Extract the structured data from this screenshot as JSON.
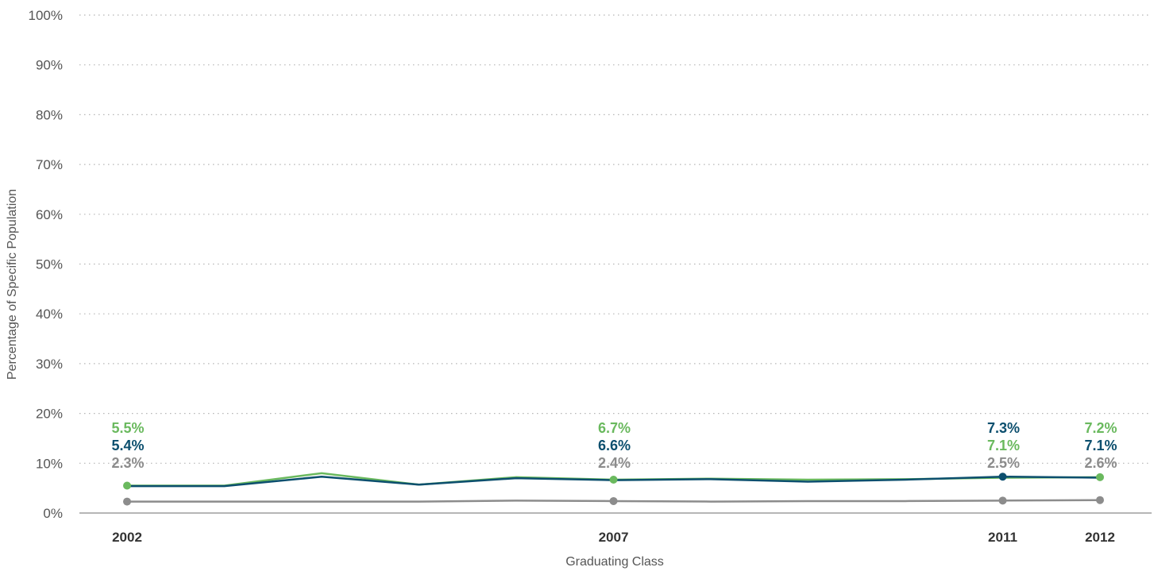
{
  "chart_data": {
    "type": "line",
    "title": "",
    "xlabel": "Graduating Class",
    "ylabel": "Percentage of Specific Population",
    "x": [
      2002,
      2003,
      2004,
      2005,
      2006,
      2007,
      2008,
      2009,
      2010,
      2011,
      2012
    ],
    "x_tick_labels": [
      "2002",
      "2007",
      "2011",
      "2012"
    ],
    "x_tick_values": [
      2002,
      2007,
      2011,
      2012
    ],
    "y_ticks": [
      {
        "value": 0,
        "label": "0%"
      },
      {
        "value": 10,
        "label": "10%"
      },
      {
        "value": 20,
        "label": "20%"
      },
      {
        "value": 30,
        "label": "30%"
      },
      {
        "value": 40,
        "label": "40%"
      },
      {
        "value": 50,
        "label": "50%"
      },
      {
        "value": 60,
        "label": "60%"
      },
      {
        "value": 70,
        "label": "70%"
      },
      {
        "value": 80,
        "label": "80%"
      },
      {
        "value": 90,
        "label": "90%"
      },
      {
        "value": 100,
        "label": "100%"
      }
    ],
    "ylim": [
      0,
      100
    ],
    "grid": true,
    "series": [
      {
        "color": "#6ab95e",
        "values": [
          5.5,
          5.5,
          8.0,
          5.7,
          7.2,
          6.7,
          6.9,
          6.7,
          6.8,
          7.1,
          7.2
        ],
        "labels": [
          {
            "x": 2002,
            "text": "5.5%"
          },
          {
            "x": 2007,
            "text": "6.7%"
          },
          {
            "x": 2011,
            "text": "7.1%"
          },
          {
            "x": 2012,
            "text": "7.2%"
          }
        ],
        "markers": [
          2002,
          2007,
          2012
        ]
      },
      {
        "color": "#0c4f6e",
        "values": [
          5.4,
          5.4,
          7.3,
          5.7,
          7.0,
          6.6,
          6.8,
          6.3,
          6.7,
          7.3,
          7.1
        ],
        "labels": [
          {
            "x": 2002,
            "text": "5.4%"
          },
          {
            "x": 2007,
            "text": "6.6%"
          },
          {
            "x": 2011,
            "text": "7.3%"
          },
          {
            "x": 2012,
            "text": "7.1%"
          }
        ],
        "markers": [
          2011
        ]
      },
      {
        "color": "#8c8c8c",
        "values": [
          2.3,
          2.3,
          2.3,
          2.3,
          2.5,
          2.4,
          2.3,
          2.4,
          2.4,
          2.5,
          2.6
        ],
        "labels": [
          {
            "x": 2002,
            "text": "2.3%"
          },
          {
            "x": 2007,
            "text": "2.4%"
          },
          {
            "x": 2011,
            "text": "2.5%"
          },
          {
            "x": 2012,
            "text": "2.6%"
          }
        ],
        "markers": [
          2002,
          2007,
          2011,
          2012
        ]
      }
    ],
    "label_order": {
      "2002": [
        0,
        1,
        2
      ],
      "2007": [
        0,
        1,
        2
      ],
      "2011": [
        1,
        0,
        2
      ],
      "2012": [
        0,
        1,
        2
      ]
    }
  }
}
